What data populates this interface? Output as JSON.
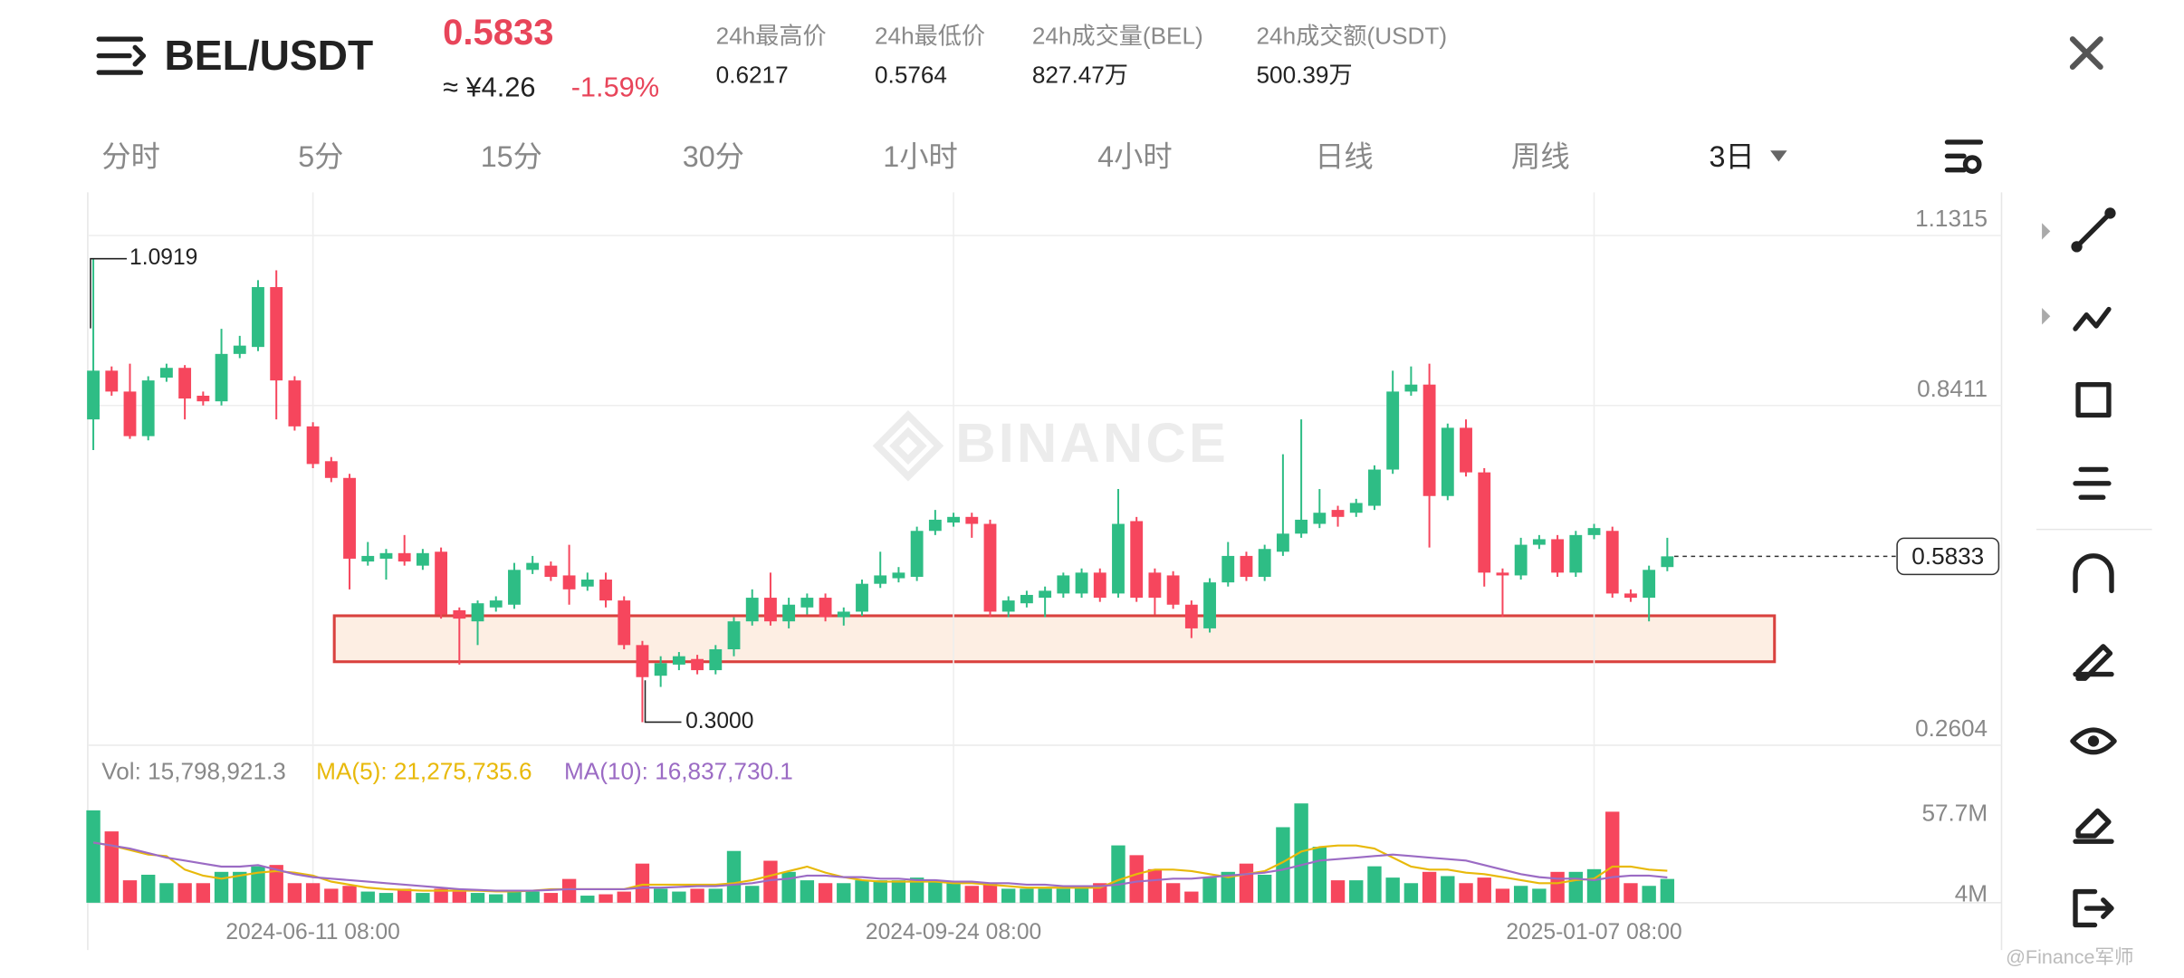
{
  "header": {
    "pair": "BEL/USDT",
    "price": "0.5833",
    "cny": "≈ ¥4.26",
    "change": "-1.59%",
    "stats": [
      {
        "label": "24h最高价",
        "value": "0.6217"
      },
      {
        "label": "24h最低价",
        "value": "0.5764"
      },
      {
        "label": "24h成交量(BEL)",
        "value": "827.47万"
      },
      {
        "label": "24h成交额(USDT)",
        "value": "500.39万"
      }
    ]
  },
  "tabs": [
    "分时",
    "5分",
    "15分",
    "30分",
    "1小时",
    "4小时",
    "日线",
    "周线",
    "3日"
  ],
  "watermark": "BINANCE",
  "credit": "@Finance军师",
  "chart_data": [
    {
      "type": "candlestick",
      "up_color": "#2ebd85",
      "down_color": "#f6465d",
      "grid": true,
      "ylim": [
        0.2604,
        1.2054
      ],
      "yticks": [
        1.1315,
        0.8411,
        0.2604
      ],
      "low_label": "0.3000",
      "categories": [
        null,
        null,
        null,
        null,
        null,
        null,
        null,
        null,
        null,
        null,
        null,
        null,
        "2024-06-11 08:00",
        null,
        null,
        null,
        null,
        null,
        null,
        null,
        null,
        null,
        null,
        null,
        null,
        null,
        null,
        null,
        null,
        null,
        null,
        null,
        null,
        null,
        null,
        null,
        null,
        null,
        null,
        null,
        null,
        null,
        null,
        null,
        null,
        null,
        null,
        "2024-09-24 08:00",
        null,
        null,
        null,
        null,
        null,
        null,
        null,
        null,
        null,
        null,
        null,
        null,
        null,
        null,
        null,
        null,
        null,
        null,
        null,
        null,
        null,
        null,
        null,
        null,
        null,
        null,
        null,
        null,
        null,
        null,
        null,
        null,
        null,
        null,
        "2025-01-07 08:00",
        null,
        null,
        null,
        null
      ],
      "open": [
        0.8173,
        0.9006,
        0.8649,
        0.7887,
        0.8887,
        0.9054,
        0.8578,
        0.8482,
        0.9292,
        0.9411,
        1.0434,
        0.8839,
        0.8054,
        0.7459,
        0.7173,
        0.5745,
        0.5793,
        0.5888,
        0.5674,
        0.5912,
        0.4912,
        0.4722,
        0.496,
        0.5007,
        0.5602,
        0.5674,
        0.5507,
        0.5317,
        0.5436,
        0.5079,
        0.4317,
        0.3793,
        0.3983,
        0.4079,
        0.3888,
        0.4245,
        0.4722,
        0.5126,
        0.4722,
        0.496,
        0.5126,
        0.4793,
        0.4888,
        0.5364,
        0.5459,
        0.5483,
        0.6268,
        0.6411,
        0.6507,
        0.6388,
        0.4888,
        0.5031,
        0.5126,
        0.5198,
        0.5198,
        0.5555,
        0.5198,
        0.6435,
        0.5555,
        0.5507,
        0.5007,
        0.4602,
        0.5388,
        0.584,
        0.5483,
        0.5912,
        0.6221,
        0.6388,
        0.6626,
        0.6578,
        0.6697,
        0.7316,
        0.8649,
        0.8768,
        0.6864,
        0.803,
        0.7268,
        0.5555,
        0.5507,
        0.6031,
        0.6126,
        0.5555,
        0.6197,
        0.6268,
        0.5198,
        0.5126,
        0.565
      ],
      "high": [
        1.0919,
        0.9078,
        0.9125,
        0.8911,
        0.9125,
        0.9101,
        0.8649,
        0.972,
        0.9601,
        1.0553,
        1.072,
        0.8911,
        0.8125,
        0.753,
        0.7244,
        0.6078,
        0.5959,
        0.6197,
        0.5959,
        0.5983,
        0.496,
        0.5079,
        0.515,
        0.5721,
        0.584,
        0.5745,
        0.6031,
        0.5555,
        0.5555,
        0.515,
        0.4388,
        0.4126,
        0.4198,
        0.415,
        0.4317,
        0.4793,
        0.5269,
        0.5555,
        0.5126,
        0.5198,
        0.5198,
        0.496,
        0.5436,
        0.5912,
        0.565,
        0.634,
        0.6626,
        0.6578,
        0.6578,
        0.6459,
        0.515,
        0.5245,
        0.5317,
        0.5555,
        0.5626,
        0.5626,
        0.6983,
        0.6507,
        0.5626,
        0.5579,
        0.5079,
        0.5459,
        0.6078,
        0.5912,
        0.6031,
        0.7578,
        0.8173,
        0.6983,
        0.6697,
        0.6816,
        0.7388,
        0.9006,
        0.9078,
        0.9125,
        0.8101,
        0.8173,
        0.734,
        0.5626,
        0.615,
        0.6197,
        0.6197,
        0.6268,
        0.6388,
        0.634,
        0.5269,
        0.5674,
        0.615
      ],
      "low": [
        0.7649,
        0.8578,
        0.784,
        0.7816,
        0.8816,
        0.8173,
        0.8411,
        0.8411,
        0.922,
        0.934,
        0.8173,
        0.7982,
        0.734,
        0.7101,
        0.5269,
        0.5674,
        0.5436,
        0.5674,
        0.5602,
        0.4769,
        0.3983,
        0.4317,
        0.4888,
        0.4936,
        0.5531,
        0.5412,
        0.5007,
        0.5245,
        0.496,
        0.4245,
        0.3,
        0.3602,
        0.3888,
        0.3817,
        0.3817,
        0.4126,
        0.465,
        0.465,
        0.4602,
        0.4841,
        0.4722,
        0.465,
        0.4817,
        0.5293,
        0.5388,
        0.5412,
        0.6197,
        0.634,
        0.615,
        0.4793,
        0.4793,
        0.496,
        0.4793,
        0.5126,
        0.5126,
        0.5055,
        0.5126,
        0.5055,
        0.4841,
        0.4936,
        0.4436,
        0.4531,
        0.5317,
        0.5412,
        0.5412,
        0.584,
        0.615,
        0.6316,
        0.634,
        0.6507,
        0.6626,
        0.7244,
        0.8578,
        0.5983,
        0.6792,
        0.7197,
        0.5317,
        0.4793,
        0.5436,
        0.5959,
        0.5483,
        0.5483,
        0.6126,
        0.5126,
        0.5055,
        0.4722,
        0.5579
      ],
      "close": [
        0.9006,
        0.8649,
        0.7887,
        0.8839,
        0.9054,
        0.853,
        0.8482,
        0.9292,
        0.9434,
        1.0434,
        0.8839,
        0.8054,
        0.7411,
        0.7173,
        0.5793,
        0.584,
        0.5888,
        0.5745,
        0.5888,
        0.4841,
        0.4769,
        0.5031,
        0.5079,
        0.5602,
        0.5721,
        0.5483,
        0.5269,
        0.5436,
        0.5079,
        0.4317,
        0.3769,
        0.4007,
        0.4126,
        0.3888,
        0.4245,
        0.4722,
        0.5126,
        0.4722,
        0.5007,
        0.5126,
        0.4793,
        0.4888,
        0.5364,
        0.5507,
        0.5555,
        0.6268,
        0.6459,
        0.6507,
        0.6388,
        0.4888,
        0.5079,
        0.5174,
        0.5245,
        0.5507,
        0.5555,
        0.5126,
        0.6388,
        0.5126,
        0.5126,
        0.5007,
        0.4602,
        0.5388,
        0.584,
        0.5483,
        0.5959,
        0.6221,
        0.6459,
        0.6578,
        0.6507,
        0.6745,
        0.7316,
        0.8649,
        0.8768,
        0.6864,
        0.803,
        0.7268,
        0.5555,
        0.5507,
        0.6031,
        0.6126,
        0.5555,
        0.6197,
        0.6316,
        0.5198,
        0.5126,
        0.5602,
        0.5833
      ]
    },
    {
      "type": "bar",
      "title": "Vol: 15,798,921.3",
      "ylim": [
        0,
        100
      ],
      "yticks": [
        {
          "value": 57.7,
          "label": "57.7M"
        },
        {
          "value": 4,
          "label": "4M"
        }
      ],
      "values": [
        61.4,
        47.4,
        14.9,
        18.6,
        13,
        13,
        13,
        20.5,
        20.5,
        24.2,
        25.1,
        13,
        13,
        9.3,
        11.2,
        7.4,
        6.5,
        9.3,
        6.5,
        9.3,
        7.4,
        6.5,
        5.6,
        7.4,
        7.4,
        6.5,
        15.8,
        4.7,
        5.6,
        7.4,
        26,
        9.3,
        7.4,
        9.3,
        9.3,
        34.4,
        11.2,
        27.9,
        20.5,
        14.9,
        13,
        13,
        14.9,
        14.9,
        14.9,
        16.7,
        14.9,
        13,
        11.2,
        13,
        9.3,
        9.3,
        9.3,
        9.3,
        11.2,
        13,
        38.1,
        31.6,
        22.3,
        13,
        7.4,
        16.7,
        20.5,
        26,
        18.6,
        50.2,
        66,
        37.2,
        14.9,
        14.9,
        24.2,
        16.7,
        13,
        20.5,
        17.7,
        13,
        16.7,
        9.3,
        11.2,
        9.3,
        20.5,
        20.5,
        22.3,
        60.5,
        13,
        11.2,
        15.7989213
      ],
      "series": [
        {
          "name": "MA(5): 21,275,735.6",
          "color": "#e8b90a",
          "values": [
            40,
            38,
            35,
            32,
            31,
            22,
            18,
            16,
            18,
            20,
            21,
            20,
            18,
            14,
            12,
            10,
            9,
            8.5,
            8,
            8,
            8,
            8,
            7.5,
            7.5,
            8,
            9,
            9,
            9,
            9,
            9,
            12,
            12,
            12,
            12,
            12,
            13,
            15,
            18,
            21,
            24,
            20,
            17,
            15,
            14,
            14,
            14,
            14,
            13,
            13,
            12,
            11,
            10,
            10,
            10,
            10,
            10,
            15,
            19,
            22,
            22,
            21,
            19,
            17,
            19,
            21,
            27,
            34,
            37,
            38,
            38,
            36,
            30,
            24,
            22,
            22,
            20,
            19,
            17,
            15,
            13,
            13,
            15,
            16,
            24,
            24,
            22,
            21.2757356
          ]
        },
        {
          "name": "MA(10): 16,837,730.1",
          "color": "#9b6bc4",
          "values": [
            40,
            38,
            36,
            33,
            30,
            28,
            26,
            24,
            24,
            25,
            22,
            19,
            17,
            16,
            15,
            14,
            13,
            12,
            11,
            10,
            9,
            8.5,
            8,
            8,
            8,
            8.5,
            9,
            9,
            9,
            9,
            10,
            10,
            10.5,
            11,
            11,
            12,
            13,
            15,
            16,
            18,
            18,
            17,
            17,
            16,
            16,
            15,
            15,
            14,
            14,
            13,
            13,
            12,
            12,
            11,
            11,
            11,
            12,
            14,
            15,
            16,
            16,
            17,
            18,
            19,
            20,
            22,
            25,
            28,
            29,
            30,
            31,
            32,
            31,
            30,
            29,
            28,
            25,
            22,
            19,
            17,
            16,
            16,
            15,
            17,
            18,
            18,
            16.8377301
          ]
        }
      ]
    }
  ]
}
